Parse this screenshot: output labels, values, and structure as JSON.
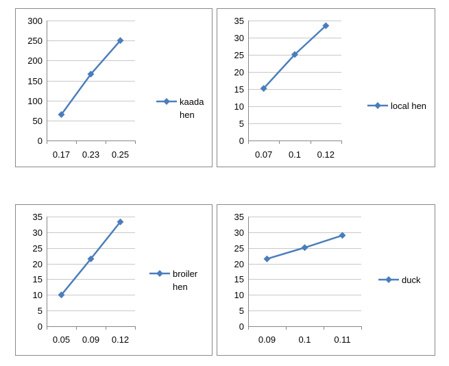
{
  "page": {
    "background": "#ffffff"
  },
  "style": {
    "series_color": "#4a7ebb",
    "grid_color": "#c8c8c8",
    "axis_color": "#868686",
    "panel_border": "#888888"
  },
  "chart_data": [
    {
      "type": "line",
      "categories": [
        "0.17",
        "0.23",
        "0.25"
      ],
      "ylim": [
        0,
        300
      ],
      "yticks": [
        0,
        50,
        100,
        150,
        200,
        250,
        300
      ],
      "series": [
        {
          "name": "kaada hen",
          "values": [
            65,
            166,
            250
          ]
        }
      ],
      "legend": "right",
      "grid": true
    },
    {
      "type": "line",
      "categories": [
        "0.07",
        "0.1",
        "0.12"
      ],
      "ylim": [
        0,
        35
      ],
      "yticks": [
        0,
        5,
        10,
        15,
        20,
        25,
        30,
        35
      ],
      "series": [
        {
          "name": "local hen",
          "values": [
            15.2,
            25.1,
            33.5
          ]
        }
      ],
      "legend": "right",
      "grid": true
    },
    {
      "type": "line",
      "categories": [
        "0.05",
        "0.09",
        "0.12"
      ],
      "ylim": [
        0,
        35
      ],
      "yticks": [
        0,
        5,
        10,
        15,
        20,
        25,
        30,
        35
      ],
      "series": [
        {
          "name": "broiler hen",
          "values": [
            10,
            21.5,
            33.3
          ]
        }
      ],
      "legend": "right",
      "grid": true
    },
    {
      "type": "line",
      "categories": [
        "0.09",
        "0.1",
        "0.11"
      ],
      "ylim": [
        0,
        35
      ],
      "yticks": [
        0,
        5,
        10,
        15,
        20,
        25,
        30,
        35
      ],
      "series": [
        {
          "name": "duck",
          "values": [
            21.5,
            25.1,
            29
          ]
        }
      ],
      "legend": "right",
      "grid": true
    }
  ]
}
